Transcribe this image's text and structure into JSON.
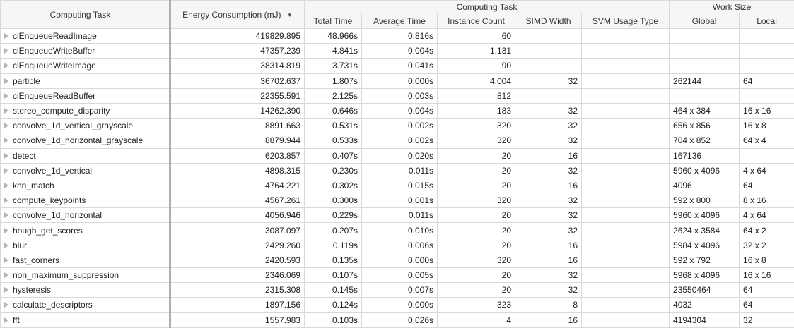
{
  "grid": {
    "headers": {
      "task": "Computing Task",
      "energy": "Energy Consumption (mJ)",
      "sort_indicator": "▼",
      "group_computing_task": "Computing Task",
      "group_work_size": "Work Size",
      "total_time": "Total Time",
      "average_time": "Average Time",
      "instance_count": "Instance Count",
      "simd_width": "SIMD Width",
      "svm_usage_type": "SVM Usage Type",
      "global": "Global",
      "local": "Local"
    },
    "rows": [
      {
        "task": "clEnqueueReadImage",
        "energy": "419829.895",
        "total_time": "48.966s",
        "average_time": "0.816s",
        "instance_count": "60",
        "simd_width": "",
        "svm_usage_type": "",
        "global": "",
        "local": ""
      },
      {
        "task": "clEnqueueWriteBuffer",
        "energy": "47357.239",
        "total_time": "4.841s",
        "average_time": "0.004s",
        "instance_count": "1,131",
        "simd_width": "",
        "svm_usage_type": "",
        "global": "",
        "local": ""
      },
      {
        "task": "clEnqueueWriteImage",
        "energy": "38314.819",
        "total_time": "3.731s",
        "average_time": "0.041s",
        "instance_count": "90",
        "simd_width": "",
        "svm_usage_type": "",
        "global": "",
        "local": ""
      },
      {
        "task": "particle",
        "energy": "36702.637",
        "total_time": "1.807s",
        "average_time": "0.000s",
        "instance_count": "4,004",
        "simd_width": "32",
        "svm_usage_type": "",
        "global": "262144",
        "local": "64"
      },
      {
        "task": "clEnqueueReadBuffer",
        "energy": "22355.591",
        "total_time": "2.125s",
        "average_time": "0.003s",
        "instance_count": "812",
        "simd_width": "",
        "svm_usage_type": "",
        "global": "",
        "local": ""
      },
      {
        "task": "stereo_compute_disparity",
        "energy": "14262.390",
        "total_time": "0.646s",
        "average_time": "0.004s",
        "instance_count": "183",
        "simd_width": "32",
        "svm_usage_type": "",
        "global": "464 x 384",
        "local": "16 x 16"
      },
      {
        "task": "convolve_1d_vertical_grayscale",
        "energy": "8891.663",
        "total_time": "0.531s",
        "average_time": "0.002s",
        "instance_count": "320",
        "simd_width": "32",
        "svm_usage_type": "",
        "global": "656 x 856",
        "local": "16 x 8"
      },
      {
        "task": "convolve_1d_horizontal_grayscale",
        "energy": "8879.944",
        "total_time": "0.533s",
        "average_time": "0.002s",
        "instance_count": "320",
        "simd_width": "32",
        "svm_usage_type": "",
        "global": "704 x 852",
        "local": "64 x 4"
      },
      {
        "task": "detect",
        "energy": "6203.857",
        "total_time": "0.407s",
        "average_time": "0.020s",
        "instance_count": "20",
        "simd_width": "16",
        "svm_usage_type": "",
        "global": "167136",
        "local": ""
      },
      {
        "task": "convolve_1d_vertical",
        "energy": "4898.315",
        "total_time": "0.230s",
        "average_time": "0.011s",
        "instance_count": "20",
        "simd_width": "32",
        "svm_usage_type": "",
        "global": "5960 x 4096",
        "local": "4 x 64"
      },
      {
        "task": "knn_match",
        "energy": "4764.221",
        "total_time": "0.302s",
        "average_time": "0.015s",
        "instance_count": "20",
        "simd_width": "16",
        "svm_usage_type": "",
        "global": "4096",
        "local": "64"
      },
      {
        "task": "compute_keypoints",
        "energy": "4567.261",
        "total_time": "0.300s",
        "average_time": "0.001s",
        "instance_count": "320",
        "simd_width": "32",
        "svm_usage_type": "",
        "global": "592 x 800",
        "local": "8 x 16"
      },
      {
        "task": "convolve_1d_horizontal",
        "energy": "4056.946",
        "total_time": "0.229s",
        "average_time": "0.011s",
        "instance_count": "20",
        "simd_width": "32",
        "svm_usage_type": "",
        "global": "5960 x 4096",
        "local": "4 x 64"
      },
      {
        "task": "hough_get_scores",
        "energy": "3087.097",
        "total_time": "0.207s",
        "average_time": "0.010s",
        "instance_count": "20",
        "simd_width": "32",
        "svm_usage_type": "",
        "global": "2624 x 3584",
        "local": "64 x 2"
      },
      {
        "task": "blur",
        "energy": "2429.260",
        "total_time": "0.119s",
        "average_time": "0.006s",
        "instance_count": "20",
        "simd_width": "16",
        "svm_usage_type": "",
        "global": "5984 x 4096",
        "local": "32 x 2"
      },
      {
        "task": "fast_corners",
        "energy": "2420.593",
        "total_time": "0.135s",
        "average_time": "0.000s",
        "instance_count": "320",
        "simd_width": "16",
        "svm_usage_type": "",
        "global": "592 x 792",
        "local": "16 x 8"
      },
      {
        "task": "non_maximum_suppression",
        "energy": "2346.069",
        "total_time": "0.107s",
        "average_time": "0.005s",
        "instance_count": "20",
        "simd_width": "32",
        "svm_usage_type": "",
        "global": "5968 x 4096",
        "local": "16 x 16"
      },
      {
        "task": "hysteresis",
        "energy": "2315.308",
        "total_time": "0.145s",
        "average_time": "0.007s",
        "instance_count": "20",
        "simd_width": "32",
        "svm_usage_type": "",
        "global": "23550464",
        "local": "64"
      },
      {
        "task": "calculate_descriptors",
        "energy": "1897.156",
        "total_time": "0.124s",
        "average_time": "0.000s",
        "instance_count": "323",
        "simd_width": "8",
        "svm_usage_type": "",
        "global": "4032",
        "local": "64"
      },
      {
        "task": "fft",
        "energy": "1557.983",
        "total_time": "0.103s",
        "average_time": "0.026s",
        "instance_count": "4",
        "simd_width": "16",
        "svm_usage_type": "",
        "global": "4194304",
        "local": "32"
      }
    ],
    "colors": {
      "header_bg": "#f5f6f7",
      "grid_border": "#d9d9d9",
      "double_separator": "#aeaeae",
      "text": "#1e1e1e",
      "expander": "#b3b3b3",
      "sort_arrow": "#555555"
    }
  }
}
